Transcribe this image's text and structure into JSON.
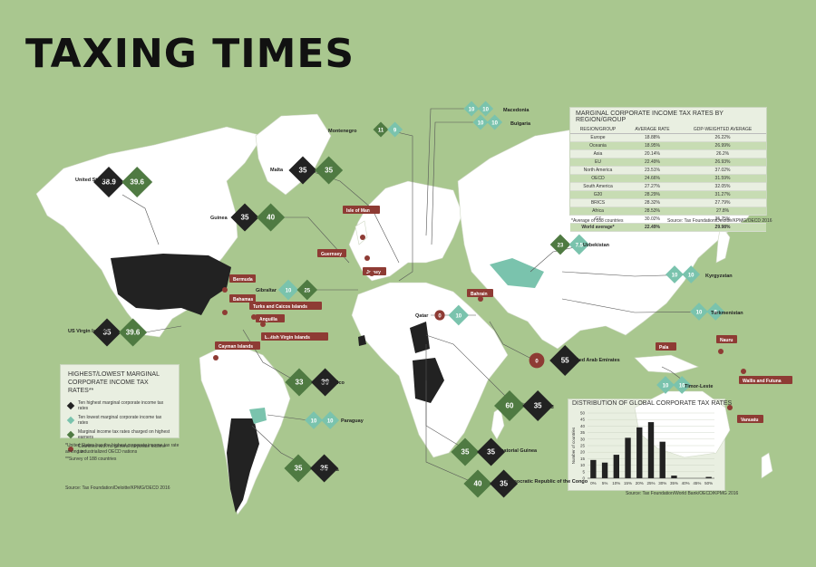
{
  "title": "TAXING TIMES",
  "colors": {
    "background": "#a9c78f",
    "land": "#ffffff",
    "highest": "#222222",
    "lowest": "#7ac3ad",
    "weighted": "#4f7a42",
    "none": "#8e3b34"
  },
  "regional_table": {
    "title": "Marginal corporate income tax rates by region/group",
    "columns": [
      "Region/Group",
      "Average rate",
      "GDP-weighted average"
    ],
    "rows": [
      [
        "Europe",
        "18.88%",
        "26.22%"
      ],
      [
        "Oceania",
        "18.95%",
        "26.99%"
      ],
      [
        "Asia",
        "20.14%",
        "26.2%"
      ],
      [
        "EU",
        "22.49%",
        "26.93%"
      ],
      [
        "North America",
        "23.51%",
        "37.02%"
      ],
      [
        "OECD",
        "24.66%",
        "31.59%"
      ],
      [
        "South America",
        "27.27%",
        "32.05%"
      ],
      [
        "G20",
        "28.29%",
        "31.27%"
      ],
      [
        "BRICS",
        "28.32%",
        "27.79%"
      ],
      [
        "Africa",
        "28.53%",
        "27.8%"
      ],
      [
        "G7",
        "30.02%",
        "35.75%"
      ],
      [
        "World average*",
        "22.49%",
        "29.98%"
      ]
    ],
    "footnote": "*Average of 188 countries",
    "source": "Source: Tax Foundation/Deloitte/KPMG/OECD 2016"
  },
  "legend": {
    "title": "Highest/lowest marginal corporate income tax rates**",
    "items": [
      {
        "label": "Ten highest marginal corporate income tax rates",
        "color": "#222222",
        "shape": "diamond"
      },
      {
        "label": "Ten lowest marginal corporate income tax rates",
        "color": "#7ac3ad",
        "shape": "diamond"
      },
      {
        "label": "Marginal income tax rates charged on highest earners",
        "color": "#4f7a42",
        "shape": "diamond"
      },
      {
        "label": "Countries with no general corporate income tax",
        "color": "#8e3b34",
        "shape": "circle"
      }
    ],
    "note1": "*United States has the highest corporate income tax rate among industrialized OECD nations",
    "note2": "**Survey of 188 countries",
    "source": "Source: Tax Foundation/Deloitte/KPMG/OECD 2016"
  },
  "markers": [
    {
      "label": "United States*",
      "corp": "38.9",
      "personal": "39.6"
    },
    {
      "label": "Malta",
      "corp": "35",
      "personal": "35"
    },
    {
      "label": "Guinea",
      "corp": "35",
      "personal": "40"
    },
    {
      "label": "Gibraltar",
      "corp": "10",
      "personal": "25"
    },
    {
      "label": "US Virgin Islands",
      "corp": "35",
      "personal": "39.6"
    },
    {
      "label": "Puerto Rico",
      "corp": "39",
      "personal": "33"
    },
    {
      "label": "Paraguay",
      "corp": "10",
      "personal": "10"
    },
    {
      "label": "Argentina",
      "corp": "35",
      "personal": "35"
    },
    {
      "label": "Montenegro",
      "corp": "9",
      "personal": "11"
    },
    {
      "label": "Macedonia",
      "corp": "10",
      "personal": "10"
    },
    {
      "label": "Bulgaria",
      "corp": "10",
      "personal": "10"
    },
    {
      "label": "Uzbekistan",
      "corp": "7.5",
      "personal": "23"
    },
    {
      "label": "Kyrgyzstan",
      "corp": "10",
      "personal": "10"
    },
    {
      "label": "Turkmenistan",
      "corp": "8",
      "personal": "10"
    },
    {
      "label": "Qatar",
      "corp": "10",
      "personal": "0"
    },
    {
      "label": "United Arab Emirates",
      "corp": "55",
      "personal": "0"
    },
    {
      "label": "Chad",
      "corp": "35",
      "personal": "60"
    },
    {
      "label": "Equatorial Guinea",
      "corp": "35",
      "personal": "35"
    },
    {
      "label": "Democratic Republic of the Congo",
      "corp": "35",
      "personal": "40"
    },
    {
      "label": "Timor-Leste",
      "corp": "10",
      "personal": "10"
    }
  ],
  "no_tax_labels": [
    "Isle of Man",
    "Guernsey",
    "Jersey",
    "Bermuda",
    "Bahamas",
    "Turks and Caicos Islands",
    "Anguilla",
    "British Virgin Islands",
    "Cayman Islands",
    "Bahrain",
    "Palau",
    "Nauru",
    "Wallis and Futuna",
    "Vanuatu"
  ],
  "chart_data": {
    "type": "bar",
    "title": "Distribution of global corporate tax rates",
    "ylabel": "Number of countries",
    "categories": [
      "0%",
      "5%",
      "10%",
      "15%",
      "20%",
      "25%",
      "30%",
      "35%",
      "40%",
      "45%",
      "50%"
    ],
    "values": [
      14,
      12,
      18,
      31,
      39,
      43,
      28,
      2,
      0,
      0,
      1
    ],
    "ylim": [
      0,
      50
    ],
    "yticks": [
      "0",
      "5",
      "10",
      "15",
      "20",
      "25",
      "30",
      "35",
      "40",
      "45",
      "50"
    ],
    "grid": true,
    "source": "Source: Tax Foundation/World Bank/OECD/KPMG 2016"
  }
}
